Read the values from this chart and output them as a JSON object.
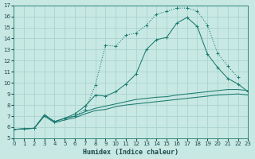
{
  "xlabel": "Humidex (Indice chaleur)",
  "bg_color": "#c8e8e4",
  "grid_color": "#aad4ce",
  "line_color": "#1a7a6e",
  "xlim": [
    0,
    23
  ],
  "ylim": [
    5,
    17
  ],
  "xticks": [
    0,
    1,
    2,
    3,
    4,
    5,
    6,
    7,
    8,
    9,
    10,
    11,
    12,
    13,
    14,
    15,
    16,
    17,
    18,
    19,
    20,
    21,
    22,
    23
  ],
  "yticks": [
    5,
    6,
    7,
    8,
    9,
    10,
    11,
    12,
    13,
    14,
    15,
    16,
    17
  ],
  "curve_top_x": [
    2,
    3,
    4,
    5,
    6,
    7,
    8,
    9,
    10,
    11,
    12,
    13,
    14,
    15,
    16,
    17,
    18,
    19,
    20,
    21,
    22
  ],
  "curve_top_y": [
    5.9,
    7.1,
    6.5,
    6.8,
    7.0,
    7.6,
    9.8,
    13.4,
    13.3,
    14.3,
    14.5,
    15.2,
    16.2,
    16.45,
    16.75,
    16.75,
    16.5,
    15.2,
    12.7,
    11.5,
    10.5
  ],
  "curve_mid_x": [
    0,
    1,
    2,
    3,
    4,
    5,
    6,
    7,
    8,
    9,
    10,
    11,
    12,
    13,
    14,
    15,
    16,
    17,
    18,
    19,
    20,
    21,
    22,
    23
  ],
  "curve_mid_y": [
    5.8,
    5.85,
    5.9,
    7.1,
    6.5,
    6.8,
    7.2,
    7.9,
    8.9,
    8.8,
    9.2,
    9.9,
    10.8,
    13.0,
    13.9,
    14.1,
    15.4,
    15.9,
    15.1,
    12.6,
    11.4,
    10.4,
    9.9,
    9.2
  ],
  "curve_lo1_x": [
    0,
    1,
    2,
    3,
    4,
    5,
    6,
    7,
    8,
    9,
    10,
    11,
    12,
    13,
    14,
    15,
    16,
    17,
    18,
    19,
    20,
    21,
    22,
    23
  ],
  "curve_lo1_y": [
    5.8,
    5.85,
    5.9,
    7.1,
    6.5,
    6.8,
    7.0,
    7.4,
    7.7,
    7.9,
    8.1,
    8.3,
    8.5,
    8.6,
    8.7,
    8.75,
    8.9,
    9.0,
    9.1,
    9.2,
    9.3,
    9.4,
    9.4,
    9.3
  ],
  "curve_lo2_x": [
    0,
    1,
    2,
    3,
    4,
    5,
    6,
    7,
    8,
    9,
    10,
    11,
    12,
    13,
    14,
    15,
    16,
    17,
    18,
    19,
    20,
    21,
    22,
    23
  ],
  "curve_lo2_y": [
    5.8,
    5.85,
    5.9,
    7.0,
    6.4,
    6.65,
    6.85,
    7.2,
    7.5,
    7.6,
    7.85,
    8.0,
    8.1,
    8.2,
    8.3,
    8.4,
    8.5,
    8.6,
    8.7,
    8.8,
    8.9,
    8.95,
    9.0,
    8.9
  ]
}
